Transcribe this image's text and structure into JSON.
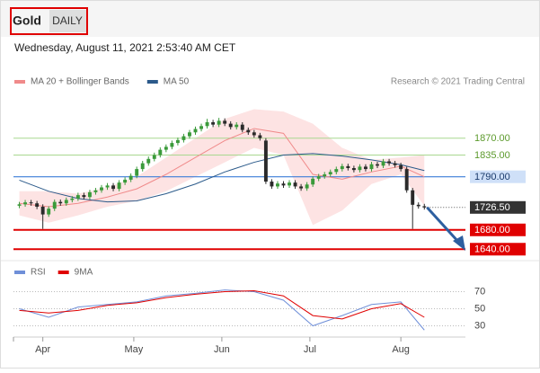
{
  "header": {
    "symbol": "Gold",
    "period": "DAILY",
    "timestamp": "Wednesday, August 11, 2021 2:53:40 AM CET",
    "credit": "Research © 2021 Trading Central"
  },
  "chart_data": [
    {
      "type": "candlestick",
      "xlim": [
        -1,
        76
      ],
      "ylim": [
        1620,
        1970
      ],
      "up_color": "#3a9a3a",
      "down_color": "#2a2a2a",
      "ohlc": [
        [
          1730,
          1738,
          1725,
          1733
        ],
        [
          1733,
          1742,
          1728,
          1737
        ],
        [
          1737,
          1742,
          1730,
          1735
        ],
        [
          1735,
          1740,
          1723,
          1728
        ],
        [
          1728,
          1733,
          1682,
          1712
        ],
        [
          1712,
          1729,
          1707,
          1724
        ],
        [
          1724,
          1743,
          1719,
          1738
        ],
        [
          1738,
          1743,
          1730,
          1735
        ],
        [
          1735,
          1747,
          1730,
          1742
        ],
        [
          1742,
          1750,
          1737,
          1745
        ],
        [
          1745,
          1757,
          1740,
          1752
        ],
        [
          1752,
          1757,
          1743,
          1748
        ],
        [
          1748,
          1763,
          1743,
          1758
        ],
        [
          1758,
          1767,
          1753,
          1762
        ],
        [
          1762,
          1773,
          1757,
          1768
        ],
        [
          1768,
          1777,
          1763,
          1772
        ],
        [
          1772,
          1777,
          1760,
          1765
        ],
        [
          1765,
          1783,
          1760,
          1778
        ],
        [
          1778,
          1789,
          1773,
          1784
        ],
        [
          1784,
          1797,
          1779,
          1792
        ],
        [
          1792,
          1811,
          1787,
          1806
        ],
        [
          1806,
          1823,
          1801,
          1818
        ],
        [
          1818,
          1832,
          1813,
          1827
        ],
        [
          1827,
          1840,
          1822,
          1835
        ],
        [
          1835,
          1851,
          1830,
          1846
        ],
        [
          1846,
          1857,
          1841,
          1852
        ],
        [
          1852,
          1865,
          1847,
          1860
        ],
        [
          1860,
          1871,
          1855,
          1866
        ],
        [
          1866,
          1879,
          1861,
          1874
        ],
        [
          1874,
          1887,
          1869,
          1882
        ],
        [
          1882,
          1894,
          1877,
          1889
        ],
        [
          1889,
          1900,
          1884,
          1895
        ],
        [
          1895,
          1910,
          1890,
          1903
        ],
        [
          1903,
          1908,
          1893,
          1898
        ],
        [
          1898,
          1912,
          1893,
          1906
        ],
        [
          1906,
          1911,
          1895,
          1900
        ],
        [
          1900,
          1905,
          1888,
          1893
        ],
        [
          1893,
          1903,
          1888,
          1898
        ],
        [
          1898,
          1903,
          1882,
          1887
        ],
        [
          1887,
          1892,
          1877,
          1882
        ],
        [
          1882,
          1887,
          1871,
          1876
        ],
        [
          1876,
          1881,
          1865,
          1870
        ],
        [
          1865,
          1870,
          1775,
          1780
        ],
        [
          1780,
          1785,
          1765,
          1770
        ],
        [
          1770,
          1781,
          1765,
          1776
        ],
        [
          1776,
          1781,
          1767,
          1772
        ],
        [
          1772,
          1783,
          1767,
          1778
        ],
        [
          1778,
          1783,
          1765,
          1770
        ],
        [
          1770,
          1775,
          1761,
          1766
        ],
        [
          1766,
          1779,
          1761,
          1774
        ],
        [
          1774,
          1791,
          1769,
          1786
        ],
        [
          1786,
          1796,
          1781,
          1791
        ],
        [
          1791,
          1800,
          1786,
          1795
        ],
        [
          1795,
          1805,
          1790,
          1800
        ],
        [
          1800,
          1811,
          1795,
          1806
        ],
        [
          1806,
          1817,
          1801,
          1812
        ],
        [
          1812,
          1817,
          1803,
          1808
        ],
        [
          1808,
          1813,
          1799,
          1804
        ],
        [
          1804,
          1816,
          1799,
          1811
        ],
        [
          1811,
          1816,
          1801,
          1806
        ],
        [
          1806,
          1821,
          1801,
          1816
        ],
        [
          1816,
          1821,
          1808,
          1813
        ],
        [
          1813,
          1827,
          1808,
          1822
        ],
        [
          1822,
          1827,
          1813,
          1818
        ],
        [
          1818,
          1823,
          1809,
          1814
        ],
        [
          1814,
          1819,
          1801,
          1806
        ],
        [
          1806,
          1811,
          1757,
          1762
        ],
        [
          1762,
          1767,
          1682,
          1732
        ],
        [
          1732,
          1737,
          1724,
          1729
        ],
        [
          1729,
          1734,
          1722,
          1726.5
        ]
      ],
      "series": [
        {
          "name": "MA 20 + Bollinger Bands",
          "color": "#f08a8a",
          "band_color": "#fde3e3",
          "x": [
            0,
            5,
            10,
            15,
            20,
            25,
            30,
            35,
            40,
            45,
            50,
            55,
            60,
            65,
            69
          ],
          "values": [
            1735,
            1728,
            1735,
            1748,
            1765,
            1795,
            1830,
            1865,
            1890,
            1880,
            1795,
            1785,
            1800,
            1812,
            1790
          ],
          "upper": [
            1760,
            1760,
            1755,
            1768,
            1790,
            1830,
            1870,
            1910,
            1930,
            1925,
            1900,
            1850,
            1825,
            1830,
            1835
          ],
          "lower": [
            1710,
            1695,
            1710,
            1728,
            1740,
            1760,
            1790,
            1820,
            1850,
            1835,
            1690,
            1720,
            1775,
            1795,
            1730
          ]
        },
        {
          "name": "MA 50",
          "color": "#2b5a8a",
          "x": [
            0,
            5,
            10,
            15,
            20,
            25,
            30,
            35,
            40,
            45,
            50,
            55,
            60,
            65,
            69
          ],
          "values": [
            1783,
            1760,
            1745,
            1738,
            1740,
            1755,
            1775,
            1800,
            1820,
            1835,
            1838,
            1833,
            1825,
            1815,
            1803
          ]
        }
      ],
      "levels": [
        {
          "value": 1870,
          "label": "1870.00",
          "color": "#a8d890",
          "text_color": "#5c9a2c",
          "boxed": false,
          "dotted": false
        },
        {
          "value": 1835,
          "label": "1835.00",
          "color": "#a8d890",
          "text_color": "#5c9a2c",
          "boxed": false,
          "dotted": false
        },
        {
          "value": 1790,
          "label": "1790.00",
          "color": "#3b7dd8",
          "text_color": "#1a3a6a",
          "boxed": true,
          "dotted": false
        },
        {
          "value": 1726.5,
          "label": "1726.50",
          "color": "#333333",
          "text_color": "#ffffff",
          "boxed": true,
          "dotted": true
        },
        {
          "value": 1680,
          "label": "1680.00",
          "color": "#e00000",
          "text_color": "#ffffff",
          "boxed": true,
          "dotted": false
        },
        {
          "value": 1640,
          "label": "1640.00",
          "color": "#e00000",
          "text_color": "#ffffff",
          "boxed": true,
          "dotted": false
        }
      ]
    },
    {
      "type": "line",
      "xlim": [
        -1,
        76
      ],
      "ylim": [
        20,
        80
      ],
      "yticks": [
        30,
        50,
        70
      ],
      "xticks": [
        {
          "value": 4,
          "label": "Apr"
        },
        {
          "value": 19.5,
          "label": "May"
        },
        {
          "value": 34.5,
          "label": "Jun"
        },
        {
          "value": 49.5,
          "label": "Jul"
        },
        {
          "value": 65,
          "label": "Aug"
        }
      ],
      "series": [
        {
          "name": "RSI",
          "color": "#6f8fd8",
          "x": [
            0,
            5,
            10,
            15,
            20,
            25,
            30,
            35,
            40,
            45,
            50,
            55,
            60,
            65,
            69
          ],
          "values": [
            50,
            40,
            52,
            55,
            58,
            65,
            68,
            72,
            70,
            60,
            30,
            42,
            55,
            58,
            25
          ]
        },
        {
          "name": "9MA",
          "color": "#e00000",
          "x": [
            0,
            5,
            10,
            15,
            20,
            25,
            30,
            35,
            40,
            45,
            50,
            55,
            60,
            65,
            69
          ],
          "values": [
            48,
            45,
            48,
            54,
            57,
            63,
            67,
            70,
            71,
            65,
            42,
            38,
            50,
            56,
            40
          ]
        }
      ]
    }
  ]
}
